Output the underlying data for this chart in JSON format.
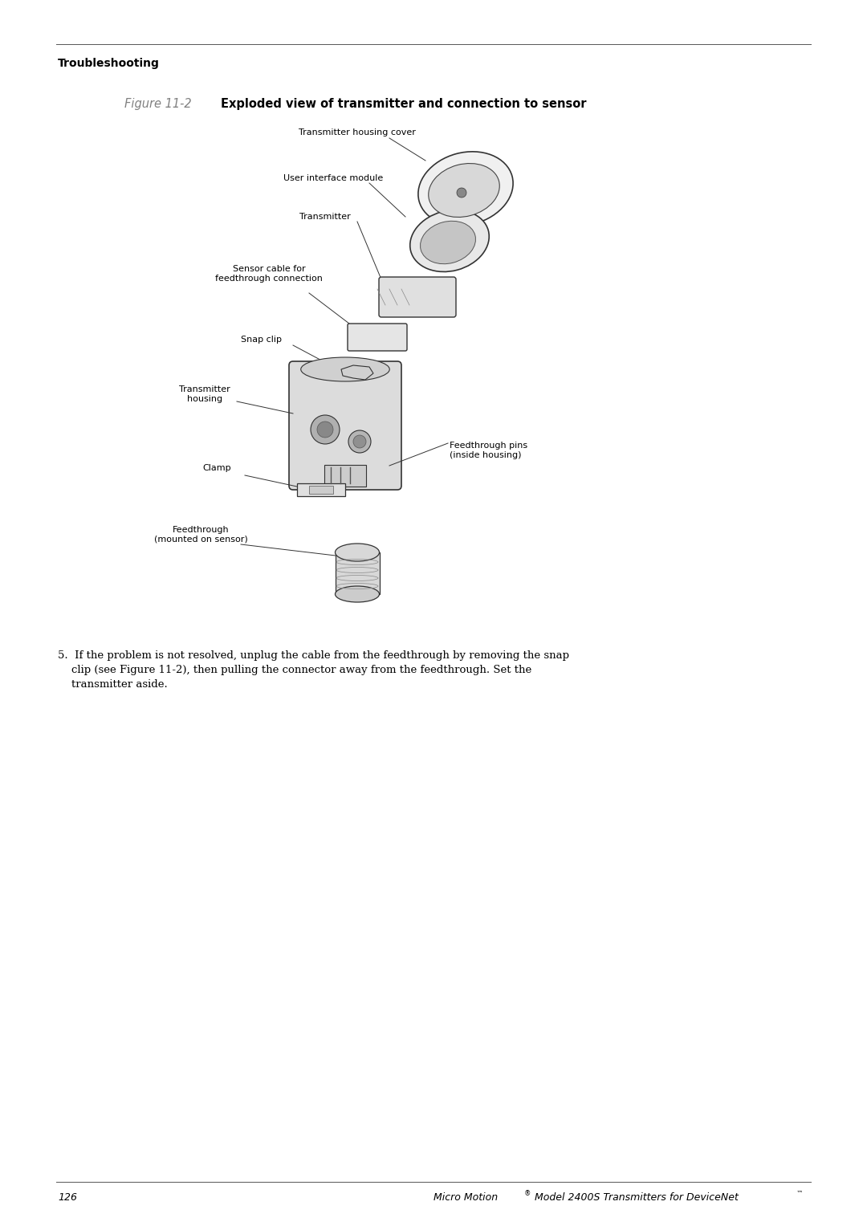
{
  "page_number": "126",
  "footer_text": "Micro Motion® Model 2400S Transmitters for DeviceNet™",
  "header_text": "Troubleshooting",
  "figure_label": "Figure 11-2",
  "figure_title": "Exploded view of transmitter and connection to sensor",
  "body_text": "5. If the problem is not resolved, unplug the cable from the feedthrough by removing the snap\n   clip (see Figure 11-2), then pulling the connector away from the feedthrough. Set the\n   transmitter aside.",
  "labels": [
    "Transmitter housing cover",
    "User interface module",
    "Transmitter",
    "Sensor cable for\nfeedthrough connection",
    "Snap clip",
    "Transmitter\nhousing",
    "Clamp",
    "Feedthrough\n(mounted on sensor)",
    "Feedthrough pins\n(inside housing)"
  ],
  "bg_color": "#ffffff",
  "text_color": "#000000",
  "figure_label_color": "#808080"
}
